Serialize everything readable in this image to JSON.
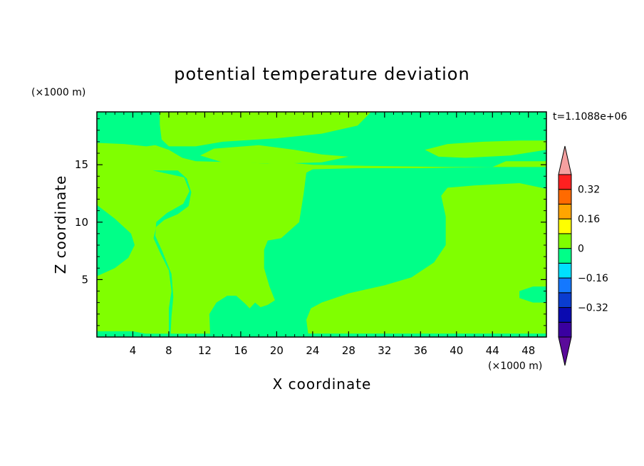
{
  "chart_data": {
    "type": "heatmap",
    "title": "potential temperature deviation",
    "time_label": "t=1.1088e+06",
    "xlabel": "X coordinate",
    "ylabel": "Z coordinate",
    "x_unit": "(×1000 m)",
    "y_unit": "(×1000 m)",
    "xlim": [
      0,
      50
    ],
    "ylim": [
      0,
      19.6
    ],
    "x_ticks": [
      4,
      8,
      12,
      16,
      20,
      24,
      28,
      32,
      36,
      40,
      44,
      48
    ],
    "y_ticks": [
      5,
      10,
      15
    ],
    "colorbar": {
      "levels": [
        -0.48,
        -0.4,
        -0.32,
        -0.24,
        -0.16,
        -0.08,
        0,
        0.08,
        0.16,
        0.24,
        0.32,
        0.4,
        0.48
      ],
      "labeled_levels": [
        -0.32,
        -0.16,
        0,
        0.16,
        0.32
      ],
      "labels": [
        "−0.32",
        "−0.16",
        "0",
        "0.16",
        "0.32"
      ],
      "colors": [
        "#5a0a9a",
        "#3a00a0",
        "#0a0ab0",
        "#0a3cd0",
        "#1478ff",
        "#00e0ff",
        "#00ff88",
        "#80ff00",
        "#ffff00",
        "#ffa500",
        "#ff6a00",
        "#ff2020",
        "#f5a0a0"
      ]
    },
    "background_fill": "#00ff88",
    "regions": [
      {
        "level_range": [
          0,
          0.08
        ],
        "color": "#80ff00",
        "points": [
          [
            7.0,
            19.6
          ],
          [
            30.5,
            19.6
          ],
          [
            29,
            18.4
          ],
          [
            25,
            17.7
          ],
          [
            20,
            17.3
          ],
          [
            14,
            17
          ],
          [
            11,
            16.6
          ],
          [
            8,
            16.6
          ],
          [
            7.2,
            17.2
          ],
          [
            7.0,
            18.5
          ]
        ]
      },
      {
        "level_range": [
          0,
          0.08
        ],
        "color": "#80ff00",
        "points": [
          [
            0,
            16.9
          ],
          [
            3,
            16.8
          ],
          [
            5.5,
            16.6
          ],
          [
            6.5,
            16.7
          ],
          [
            8,
            16.3
          ],
          [
            9.5,
            15.6
          ],
          [
            11,
            15.3
          ],
          [
            16,
            15.2
          ],
          [
            19,
            15.1
          ],
          [
            21,
            15.2
          ],
          [
            24,
            15.0
          ],
          [
            30,
            14.9
          ],
          [
            40,
            14.8
          ],
          [
            44,
            14.8
          ],
          [
            45.5,
            15.3
          ],
          [
            50,
            15.3
          ],
          [
            50,
            0.3
          ],
          [
            0,
            0.3
          ]
        ]
      },
      {
        "level_range": [
          0,
          0.08
        ],
        "color": "#80ff00",
        "points": [
          [
            11.5,
            15.8
          ],
          [
            13,
            16.4
          ],
          [
            18,
            16.7
          ],
          [
            22,
            16.3
          ],
          [
            25,
            15.9
          ],
          [
            28,
            15.7
          ],
          [
            25,
            15.2
          ],
          [
            20,
            15.1
          ],
          [
            14,
            15.2
          ]
        ]
      },
      {
        "level_range": [
          0,
          0.08
        ],
        "color": "#80ff00",
        "points": [
          [
            36.5,
            16.3
          ],
          [
            39,
            16.8
          ],
          [
            43,
            17
          ],
          [
            47,
            17.1
          ],
          [
            50,
            17.1
          ],
          [
            50,
            16.3
          ],
          [
            46,
            15.8
          ],
          [
            41,
            15.6
          ],
          [
            38,
            15.7
          ]
        ]
      },
      {
        "level_range": [
          -0.08,
          0
        ],
        "color": "#00ff88",
        "points": [
          [
            0,
            11.5
          ],
          [
            2,
            10.3
          ],
          [
            3.8,
            9.0
          ],
          [
            4.2,
            8.0
          ],
          [
            3.5,
            6.9
          ],
          [
            2,
            6.0
          ],
          [
            0,
            5.3
          ]
        ]
      },
      {
        "level_range": [
          -0.08,
          0
        ],
        "color": "#00ff88",
        "points": [
          [
            6.2,
            14.5
          ],
          [
            9,
            14.5
          ],
          [
            10,
            13.8
          ],
          [
            10.5,
            12.6
          ],
          [
            10.2,
            11.4
          ],
          [
            9,
            10.7
          ],
          [
            7.5,
            10.2
          ],
          [
            6.6,
            9.6
          ],
          [
            6.3,
            8.6
          ],
          [
            7,
            7.4
          ],
          [
            8,
            5.8
          ],
          [
            8.3,
            4
          ],
          [
            8.0,
            2.5
          ],
          [
            8.0,
            0.2
          ],
          [
            6.0,
            0.2
          ],
          [
            4,
            0.5
          ],
          [
            0,
            0.5
          ],
          [
            0,
            0.2
          ],
          [
            50,
            0.2
          ],
          [
            50,
            0.3
          ],
          [
            35,
            0.3
          ],
          [
            23.5,
            0.3
          ],
          [
            23.3,
            1.5
          ],
          [
            23.8,
            2.5
          ],
          [
            25,
            3
          ],
          [
            28,
            3.8
          ],
          [
            32,
            4.5
          ],
          [
            35,
            5.2
          ],
          [
            37.5,
            6.5
          ],
          [
            38.8,
            8
          ],
          [
            38.8,
            10.5
          ],
          [
            38.3,
            12.3
          ],
          [
            39,
            13
          ],
          [
            42,
            13.2
          ],
          [
            47,
            13.4
          ],
          [
            50,
            12.9
          ],
          [
            50,
            14.8
          ],
          [
            44,
            14.8
          ],
          [
            36,
            14.7
          ],
          [
            29,
            14.7
          ],
          [
            24,
            14.6
          ],
          [
            23.3,
            14.3
          ],
          [
            23.0,
            12.5
          ],
          [
            22.5,
            10.0
          ],
          [
            20.5,
            8.6
          ],
          [
            19.0,
            8.4
          ],
          [
            18.6,
            7.6
          ],
          [
            18.6,
            6.0
          ],
          [
            19.2,
            4.4
          ],
          [
            19.8,
            3.2
          ],
          [
            19.0,
            2.8
          ],
          [
            18.2,
            2.6
          ],
          [
            17.6,
            3.0
          ],
          [
            17.0,
            2.5
          ],
          [
            16.5,
            2.9
          ],
          [
            15.5,
            3.6
          ],
          [
            14.5,
            3.6
          ],
          [
            13.3,
            3.0
          ],
          [
            12.5,
            2.0
          ],
          [
            12.6,
            0.2
          ],
          [
            8.2,
            0.2
          ],
          [
            8.3,
            1.8
          ],
          [
            8.5,
            3.5
          ],
          [
            8.3,
            5.5
          ],
          [
            7.2,
            7.6
          ],
          [
            6.5,
            8.8
          ],
          [
            6.6,
            10.0
          ],
          [
            7.8,
            10.8
          ],
          [
            9.6,
            11.6
          ],
          [
            10.3,
            12.7
          ],
          [
            9.7,
            13.9
          ]
        ]
      },
      {
        "level_range": [
          -0.08,
          0
        ],
        "color": "#00ff88",
        "points": [
          [
            50,
            4.4
          ],
          [
            48.5,
            4.4
          ],
          [
            47.0,
            4.0
          ],
          [
            47.0,
            3.4
          ],
          [
            48.5,
            3.0
          ],
          [
            50,
            3.0
          ]
        ]
      }
    ]
  }
}
